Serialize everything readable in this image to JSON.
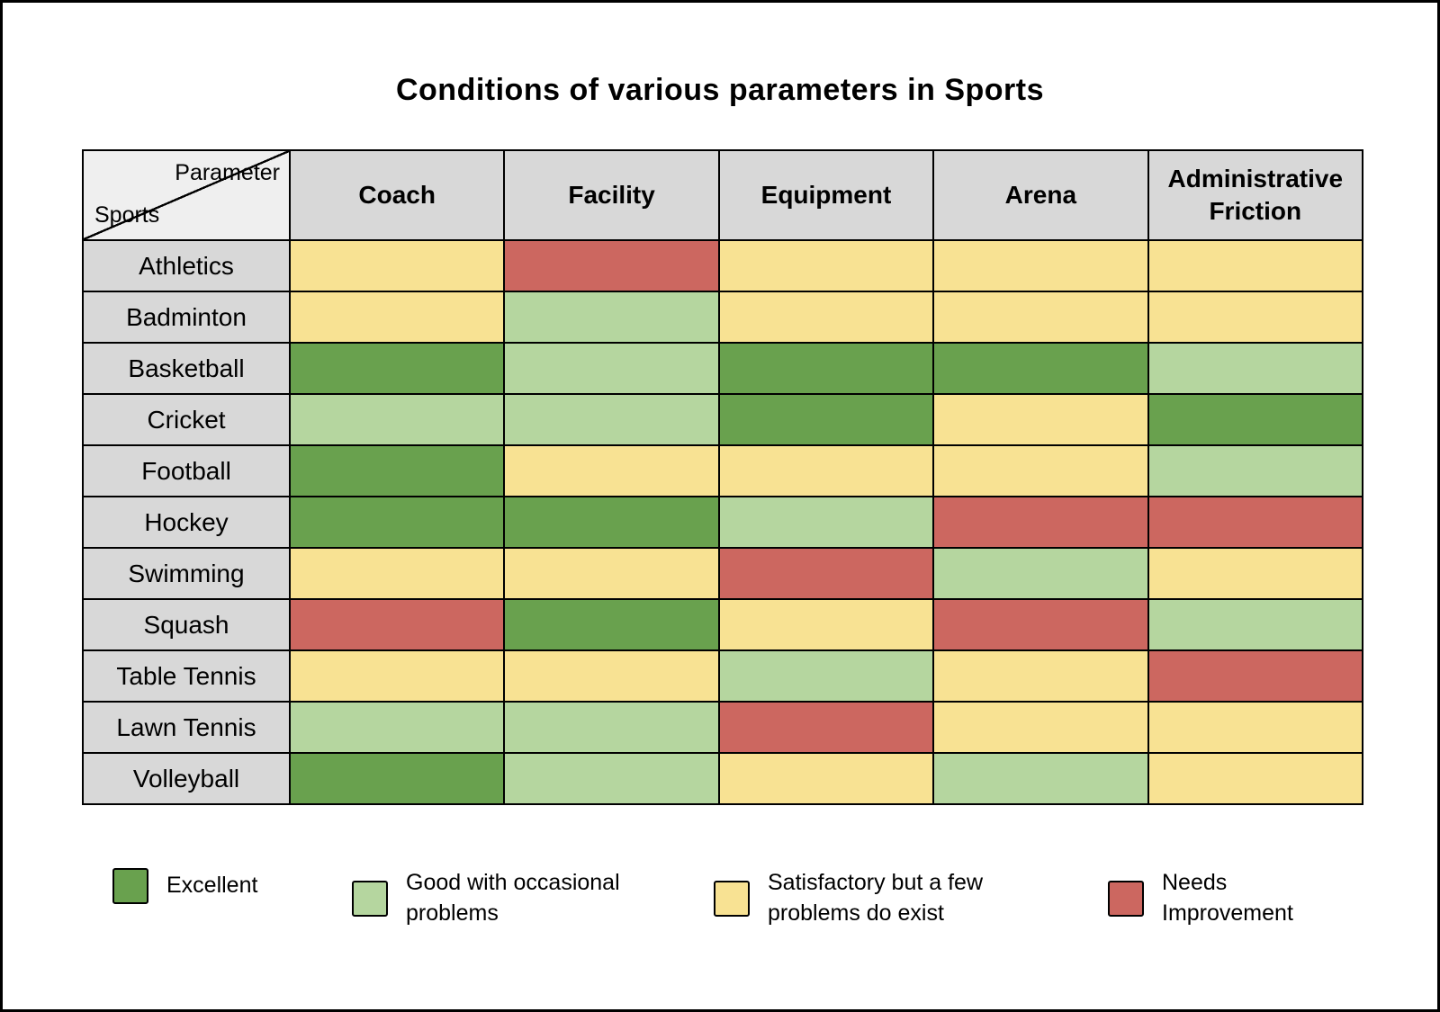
{
  "title": "Conditions of various parameters in Sports",
  "corner": {
    "parameter": "Parameter",
    "sports": "Sports"
  },
  "colors": {
    "excellent": "#69a14e",
    "good": "#b5d69f",
    "satisfactory": "#f8e293",
    "needs_improvement": "#cc6760",
    "header_bg": "#d8d8d8",
    "corner_bg": "#efefef"
  },
  "legend": [
    {
      "key": "excellent",
      "label": "Excellent"
    },
    {
      "key": "good",
      "label": "Good with occasional problems"
    },
    {
      "key": "satisfactory",
      "label": "Satisfactory but a few problems do exist"
    },
    {
      "key": "needs_improvement",
      "label": "Needs Improvement"
    }
  ],
  "chart_data": {
    "type": "heatmap",
    "title": "Conditions of various parameters in Sports",
    "corner_top_label": "Parameter",
    "corner_bottom_label": "Sports",
    "x_categories": [
      "Coach",
      "Facility",
      "Equipment",
      "Arena",
      "Administrative Friction"
    ],
    "y_categories": [
      "Athletics",
      "Badminton",
      "Basketball",
      "Cricket",
      "Football",
      "Hockey",
      "Swimming",
      "Squash",
      "Table Tennis",
      "Lawn Tennis",
      "Volleyball"
    ],
    "values": [
      [
        "satisfactory",
        "needs_improvement",
        "satisfactory",
        "satisfactory",
        "satisfactory"
      ],
      [
        "satisfactory",
        "good",
        "satisfactory",
        "satisfactory",
        "satisfactory"
      ],
      [
        "excellent",
        "good",
        "excellent",
        "excellent",
        "good"
      ],
      [
        "good",
        "good",
        "excellent",
        "satisfactory",
        "excellent"
      ],
      [
        "excellent",
        "satisfactory",
        "satisfactory",
        "satisfactory",
        "good"
      ],
      [
        "excellent",
        "excellent",
        "good",
        "needs_improvement",
        "needs_improvement"
      ],
      [
        "satisfactory",
        "satisfactory",
        "needs_improvement",
        "good",
        "satisfactory"
      ],
      [
        "needs_improvement",
        "excellent",
        "satisfactory",
        "needs_improvement",
        "good"
      ],
      [
        "satisfactory",
        "satisfactory",
        "good",
        "satisfactory",
        "needs_improvement"
      ],
      [
        "good",
        "good",
        "needs_improvement",
        "satisfactory",
        "satisfactory"
      ],
      [
        "excellent",
        "good",
        "satisfactory",
        "good",
        "satisfactory"
      ]
    ],
    "value_scale": {
      "excellent": "Excellent",
      "good": "Good with occasional problems",
      "satisfactory": "Satisfactory but a few problems do exist",
      "needs_improvement": "Needs Improvement"
    }
  }
}
